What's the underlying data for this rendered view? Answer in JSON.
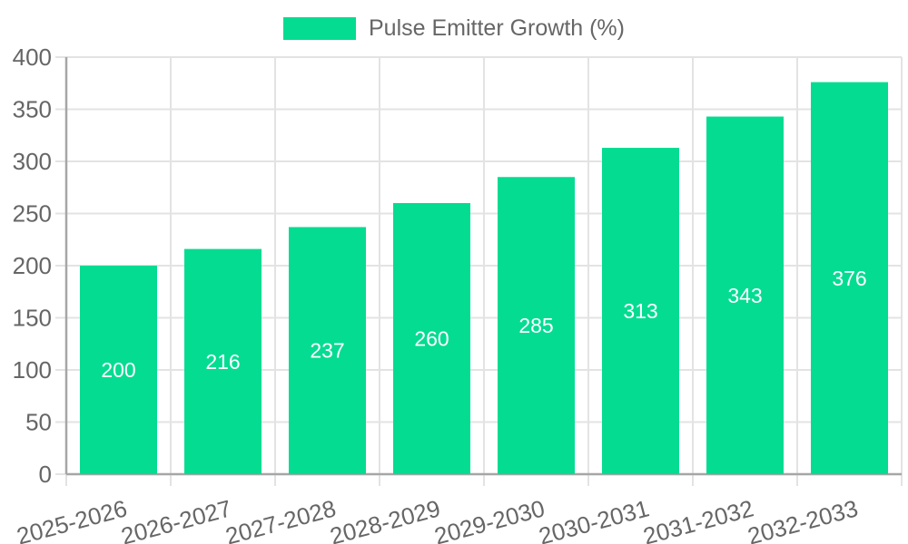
{
  "chart_data": {
    "type": "bar",
    "title": "",
    "legend": {
      "label": "Pulse Emitter Growth (%)",
      "position": "top"
    },
    "categories": [
      "2025-2026",
      "2026-2027",
      "2027-2028",
      "2028-2029",
      "2029-2030",
      "2030-2031",
      "2031-2032",
      "2032-2033"
    ],
    "series": [
      {
        "name": "Pulse Emitter Growth (%)",
        "values": [
          200,
          216,
          237,
          260,
          285,
          313,
          343,
          376
        ],
        "color": "#04dc92"
      }
    ],
    "ylim": [
      0,
      400
    ],
    "ytick_step": 50,
    "ytick_labels": [
      "0",
      "50",
      "100",
      "150",
      "200",
      "250",
      "300",
      "350",
      "400"
    ],
    "grid": true,
    "x_label_rotation_deg": -15,
    "bar_labels_visible": true,
    "colors": {
      "bar": "#04dc92",
      "bar_label_text": "#ffffff",
      "axis_line": "#a6a6a6",
      "grid_line": "#e3e3e3",
      "tick_label_text": "#666666",
      "legend_text": "#666666",
      "background": "#ffffff"
    }
  }
}
